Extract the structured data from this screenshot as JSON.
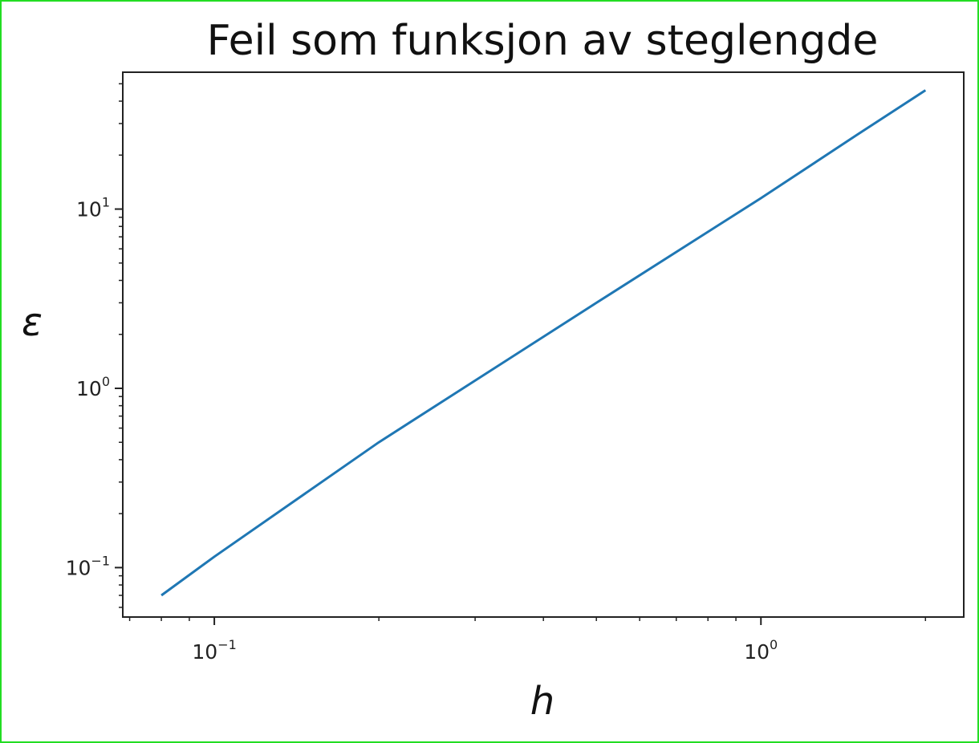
{
  "chart_data": {
    "type": "line",
    "title": "Feil som funksjon av steglengde",
    "xlabel": "h",
    "ylabel": "ε",
    "xscale": "log",
    "yscale": "log",
    "xlim": [
      0.068,
      2.35
    ],
    "ylim": [
      0.053,
      58
    ],
    "x_ticks": [
      {
        "value": 0.1,
        "base": "10",
        "exp": "−1"
      },
      {
        "value": 1,
        "base": "10",
        "exp": "0"
      }
    ],
    "y_ticks": [
      {
        "value": 0.1,
        "base": "10",
        "exp": "−1"
      },
      {
        "value": 1,
        "base": "10",
        "exp": "0"
      },
      {
        "value": 10,
        "base": "10",
        "exp": "1"
      }
    ],
    "grid": false,
    "series": [
      {
        "color": "#1f77b4",
        "x": [
          0.08,
          0.1,
          0.2,
          0.5,
          1.0,
          1.5,
          2.0
        ],
        "y": [
          0.07,
          0.115,
          0.5,
          3.0,
          11.5,
          26.0,
          46.0
        ]
      }
    ]
  }
}
